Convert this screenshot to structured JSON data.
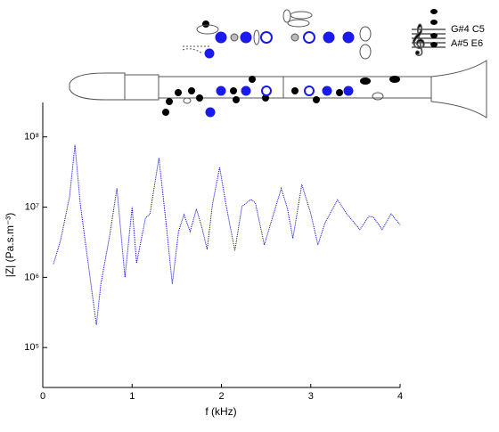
{
  "chart_data": {
    "type": "line",
    "x_label": "f (kHz)",
    "y_label": "|Z| (Pa.s.m⁻³)",
    "annotations": [
      "G#4  C5",
      "A#5  E6"
    ],
    "x": [
      0.12,
      0.2,
      0.3,
      0.36,
      0.42,
      0.5,
      0.6,
      0.65,
      0.75,
      0.83,
      0.9,
      0.92,
      1.0,
      1.05,
      1.15,
      1.2,
      1.3,
      1.38,
      1.45,
      1.52,
      1.58,
      1.65,
      1.72,
      1.78,
      1.84,
      1.9,
      1.98,
      2.05,
      2.15,
      2.23,
      2.33,
      2.38,
      2.48,
      2.57,
      2.67,
      2.74,
      2.8,
      2.9,
      3.0,
      3.08,
      3.16,
      3.3,
      3.4,
      3.55,
      3.65,
      3.7,
      3.8,
      3.9,
      4.0
    ],
    "series": [
      {
        "name": "|Z|",
        "color": "#0000cc",
        "values": [
          1550000,
          3400000,
          14000000,
          77000000,
          11000000,
          1900000,
          210000,
          800000,
          4000000,
          18500000,
          1900000,
          1000000,
          10000000,
          1600000,
          7000000,
          8000000,
          50000000,
          6000000,
          800000,
          4500000,
          7800000,
          4500000,
          9400000,
          5200000,
          2500000,
          11000000,
          37000000,
          11000000,
          2400000,
          10200000,
          12900000,
          11500000,
          2900000,
          7000000,
          18500000,
          9400000,
          3600000,
          21000000,
          8100000,
          2900000,
          6000000,
          12700000,
          8100000,
          4800000,
          7400000,
          7200000,
          4800000,
          8000000,
          5600000
        ]
      }
    ],
    "xlim": [
      0,
      4
    ],
    "xticks": [
      0,
      1,
      2,
      3,
      4
    ],
    "ylim": [
      27000,
      310000000
    ],
    "log_y": true,
    "yticks": [
      {
        "value": 100000,
        "label": "10⁵"
      },
      {
        "value": 1000000,
        "label": "10⁶"
      },
      {
        "value": 10000000,
        "label": "10⁷"
      },
      {
        "value": 100000000,
        "label": "10⁸"
      }
    ]
  }
}
